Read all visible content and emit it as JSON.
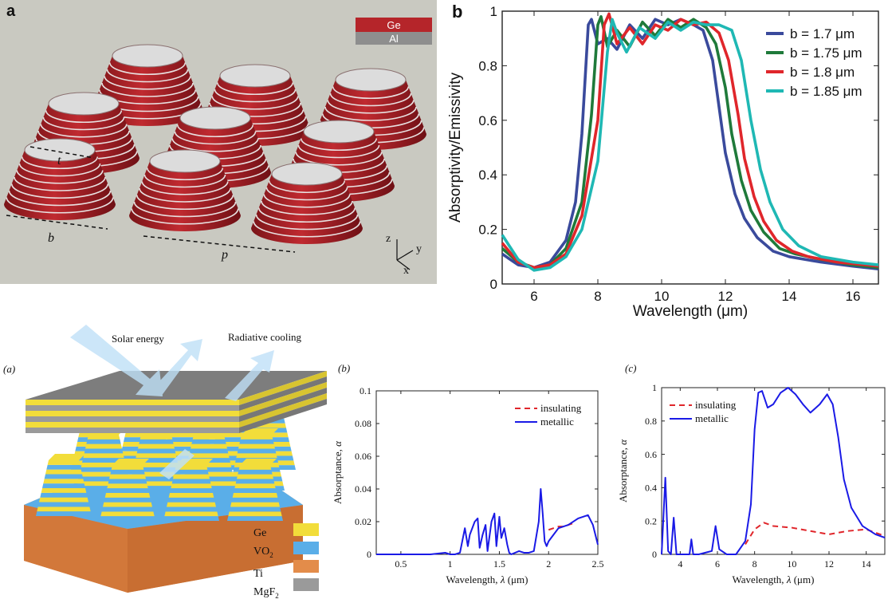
{
  "panel_a": {
    "letter": "a",
    "legend": [
      "Ge",
      "Al"
    ],
    "dims": {
      "t": "t",
      "b": "b",
      "p": "p"
    },
    "axes": {
      "z": "z",
      "y": "y",
      "x": "x"
    },
    "colors": {
      "bg": "#c9c9c1",
      "ge": "#b5252a",
      "al": "#8e8e8e",
      "top": "#dcdcdc"
    }
  },
  "panel_b_top": {
    "letter": "b",
    "colors": [
      "#3a4a9c",
      "#1f7a3a",
      "#e0262b",
      "#1fb8b4"
    ]
  },
  "panel_bot_a": {
    "letter": "(a)",
    "solar": "Solar energy",
    "cooling": "Radiative cooling",
    "legend": [
      "Ge",
      "VO",
      "Ti",
      "MgF"
    ],
    "legend_subs": [
      "",
      "2",
      "",
      "2"
    ],
    "legend_colors": [
      "#f2dd3a",
      "#5aaee8",
      "#e38c4a",
      "#9a9a9a"
    ]
  },
  "chart_data": [
    {
      "type": "line",
      "xlabel": "Wavelength (μm)",
      "ylabel": "Absorptivity/Emissivity",
      "xlim": [
        5,
        16.8
      ],
      "ylim": [
        0,
        1
      ],
      "xticks": [
        6,
        8,
        10,
        12,
        14,
        16
      ],
      "yticks": [
        0,
        0.2,
        0.4,
        0.6,
        0.8,
        1
      ],
      "legend_position": "top-right",
      "grid": false,
      "series": [
        {
          "name": "b = 1.7 μm",
          "color": "#3a4a9c",
          "x": [
            5,
            5.5,
            6,
            6.5,
            7,
            7.3,
            7.5,
            7.7,
            7.8,
            8,
            8.3,
            8.6,
            9,
            9.4,
            9.8,
            10.2,
            10.6,
            11,
            11.3,
            11.6,
            11.8,
            12,
            12.3,
            12.6,
            13,
            13.5,
            14,
            15,
            16,
            16.8
          ],
          "y": [
            0.11,
            0.07,
            0.06,
            0.08,
            0.16,
            0.3,
            0.55,
            0.95,
            0.97,
            0.88,
            0.9,
            0.86,
            0.95,
            0.9,
            0.97,
            0.95,
            0.97,
            0.95,
            0.93,
            0.82,
            0.65,
            0.48,
            0.33,
            0.24,
            0.17,
            0.12,
            0.1,
            0.08,
            0.065,
            0.055
          ]
        },
        {
          "name": "b = 1.75 μm",
          "color": "#1f7a3a",
          "x": [
            5,
            5.5,
            6,
            6.5,
            7,
            7.5,
            7.8,
            8,
            8.1,
            8.3,
            8.6,
            9,
            9.4,
            9.8,
            10.2,
            10.6,
            11,
            11.4,
            11.7,
            12,
            12.2,
            12.5,
            12.8,
            13.2,
            13.7,
            14.2,
            15,
            16,
            16.8
          ],
          "y": [
            0.13,
            0.08,
            0.06,
            0.07,
            0.13,
            0.3,
            0.62,
            0.95,
            0.98,
            0.87,
            0.93,
            0.87,
            0.96,
            0.91,
            0.97,
            0.94,
            0.97,
            0.94,
            0.88,
            0.72,
            0.55,
            0.38,
            0.27,
            0.19,
            0.13,
            0.11,
            0.09,
            0.07,
            0.06
          ]
        },
        {
          "name": "b = 1.8 μm",
          "color": "#e0262b",
          "x": [
            5,
            5.5,
            6,
            6.5,
            7,
            7.5,
            8,
            8.2,
            8.35,
            8.6,
            9,
            9.4,
            9.8,
            10.2,
            10.6,
            11,
            11.4,
            11.8,
            12.1,
            12.4,
            12.6,
            12.9,
            13.2,
            13.6,
            14.1,
            14.6,
            15.5,
            16.8
          ],
          "y": [
            0.15,
            0.08,
            0.06,
            0.07,
            0.11,
            0.25,
            0.6,
            0.95,
            0.99,
            0.88,
            0.94,
            0.88,
            0.95,
            0.93,
            0.97,
            0.95,
            0.96,
            0.92,
            0.82,
            0.62,
            0.46,
            0.32,
            0.23,
            0.16,
            0.12,
            0.1,
            0.08,
            0.065
          ]
        },
        {
          "name": "b = 1.85 μm",
          "color": "#1fb8b4",
          "x": [
            5,
            5.5,
            6,
            6.5,
            7,
            7.5,
            8,
            8.3,
            8.45,
            8.6,
            8.9,
            9.3,
            9.8,
            10.2,
            10.6,
            11,
            11.4,
            11.8,
            12.2,
            12.5,
            12.8,
            13.1,
            13.4,
            13.8,
            14.3,
            15,
            16,
            16.8
          ],
          "y": [
            0.18,
            0.09,
            0.05,
            0.06,
            0.1,
            0.2,
            0.45,
            0.85,
            0.97,
            0.92,
            0.85,
            0.94,
            0.9,
            0.96,
            0.93,
            0.96,
            0.95,
            0.95,
            0.93,
            0.82,
            0.6,
            0.42,
            0.3,
            0.2,
            0.14,
            0.1,
            0.08,
            0.07
          ]
        }
      ]
    },
    {
      "type": "line",
      "panel_letter": "(b)",
      "xlabel_prefix": "Wavelength, ",
      "xlabel_sym": "λ",
      "xlabel_unit": " (μm)",
      "ylabel_prefix": "Absorptance, ",
      "ylabel_sym": "α",
      "xlim": [
        0.25,
        2.5
      ],
      "ylim": [
        0,
        0.1
      ],
      "xticks": [
        0.5,
        1,
        1.5,
        2,
        2.5
      ],
      "yticks": [
        0,
        0.02,
        0.04,
        0.06,
        0.08,
        0.1
      ],
      "legend_position": "top-right",
      "series": [
        {
          "name": "insulating",
          "color": "#e0262b",
          "dash": true,
          "x": [
            2.0,
            2.05,
            2.1,
            2.15,
            2.2,
            2.25
          ],
          "y": [
            0.015,
            0.016,
            0.017,
            0.017,
            0.018,
            0.019
          ]
        },
        {
          "name": "metallic",
          "color": "#1a1ae6",
          "dash": false,
          "x": [
            0.25,
            0.5,
            0.8,
            0.95,
            1.0,
            1.05,
            1.1,
            1.15,
            1.18,
            1.2,
            1.25,
            1.28,
            1.3,
            1.33,
            1.36,
            1.38,
            1.42,
            1.45,
            1.47,
            1.5,
            1.52,
            1.55,
            1.58,
            1.6,
            1.62,
            1.7,
            1.75,
            1.8,
            1.85,
            1.9,
            1.92,
            1.94,
            1.96,
            1.98,
            2.0,
            2.05,
            2.1,
            2.2,
            2.3,
            2.4,
            2.45,
            2.5
          ],
          "y": [
            0,
            0,
            0,
            0.001,
            0,
            0,
            0.001,
            0.016,
            0.005,
            0.012,
            0.02,
            0.022,
            0.004,
            0.012,
            0.018,
            0.002,
            0.02,
            0.025,
            0.005,
            0.023,
            0.01,
            0.016,
            0.006,
            0.001,
            0,
            0.002,
            0.001,
            0.001,
            0.002,
            0.02,
            0.04,
            0.025,
            0.008,
            0.005,
            0.008,
            0.012,
            0.016,
            0.018,
            0.022,
            0.024,
            0.018,
            0.006
          ]
        }
      ]
    },
    {
      "type": "line",
      "panel_letter": "(c)",
      "xlabel_prefix": "Wavelength, ",
      "xlabel_sym": "λ",
      "xlabel_unit": " (μm)",
      "ylabel_prefix": "Absorptance, ",
      "ylabel_sym": "α",
      "xlim": [
        3,
        15
      ],
      "ylim": [
        0,
        1
      ],
      "xticks": [
        4,
        6,
        8,
        10,
        12,
        14
      ],
      "yticks": [
        0,
        0.2,
        0.4,
        0.6,
        0.8,
        1
      ],
      "legend_position": "top-left",
      "series": [
        {
          "name": "insulating",
          "color": "#e0262b",
          "dash": true,
          "x": [
            7.5,
            8,
            8.5,
            9,
            10,
            11,
            12,
            13,
            14,
            15
          ],
          "y": [
            0.06,
            0.15,
            0.19,
            0.17,
            0.16,
            0.14,
            0.12,
            0.14,
            0.15,
            0.11
          ]
        },
        {
          "name": "metallic",
          "color": "#1a1ae6",
          "dash": false,
          "x": [
            3,
            3.2,
            3.35,
            3.5,
            3.65,
            3.8,
            4,
            4.5,
            4.6,
            4.7,
            5,
            5.7,
            5.9,
            6.1,
            6.5,
            7,
            7.5,
            7.8,
            8,
            8.2,
            8.4,
            8.7,
            9,
            9.4,
            9.8,
            10.2,
            10.6,
            11,
            11.5,
            11.9,
            12.2,
            12.5,
            12.8,
            13.2,
            13.8,
            14.5,
            15
          ],
          "y": [
            0,
            0.46,
            0.02,
            0,
            0.22,
            0,
            0,
            0,
            0.09,
            0,
            0,
            0.02,
            0.17,
            0.03,
            0,
            0,
            0.08,
            0.3,
            0.75,
            0.97,
            0.98,
            0.88,
            0.9,
            0.97,
            1.0,
            0.96,
            0.9,
            0.85,
            0.9,
            0.96,
            0.9,
            0.7,
            0.45,
            0.28,
            0.17,
            0.12,
            0.1
          ]
        }
      ]
    }
  ]
}
